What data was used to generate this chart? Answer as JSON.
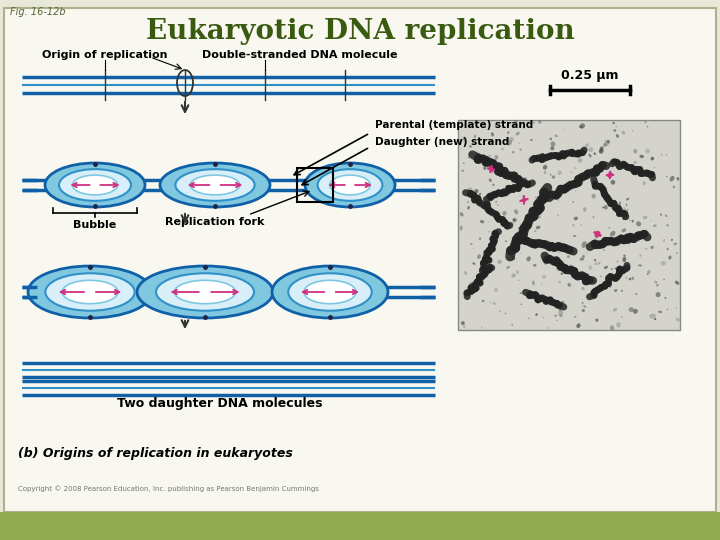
{
  "title": "Eukaryotic DNA replication",
  "fig_label": "Fig. 16-12b",
  "title_color": "#3a5a10",
  "bg_color": "#e8e8d8",
  "border_color": "#b0b090",
  "inner_bg": "#f8f8f0",
  "blue_dark": "#1060a8",
  "blue_mid": "#3090c8",
  "blue_light": "#80c8e0",
  "pink": "#d03080",
  "text_color": "#000000",
  "bottom_bar_color": "#90aa50",
  "photo_bg": "#c8c8c0",
  "labels": {
    "origin": "Origin of replication",
    "double_strand": "Double-stranded DNA molecule",
    "parental": "Parental (template) strand",
    "daughter": "Daughter (new) strand",
    "bubble": "Bubble",
    "rep_fork": "Replication fork",
    "two_daughter": "Two daughter DNA molecules",
    "bottom_caption": "(b) Origins of replication in eukaryotes",
    "scale": "0.25 μm",
    "copyright": "Copyright © 2008 Pearson Education, Inc. publishing as Pearson Benjamin Cummings"
  }
}
